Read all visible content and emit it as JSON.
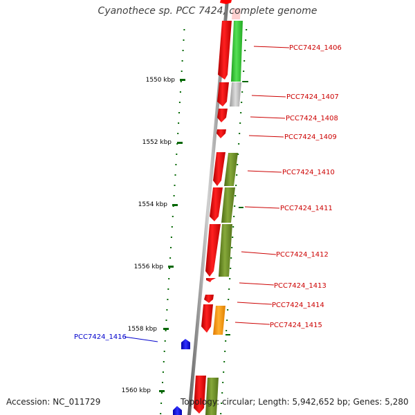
{
  "title": "Cyanothece sp. PCC 7424, complete genome",
  "accession": "Accession: NC_011729",
  "summary": "Topology: circular; Length: 5,942,652 bp; Genes: 5,280",
  "ruler_ticks": [
    "1550 kbp",
    "1552 kbp",
    "1554 kbp",
    "1556 kbp",
    "1558 kbp",
    "1560 kbp"
  ],
  "gene_labels": [
    {
      "text": "PCC7424_1406",
      "color": "#cc0000"
    },
    {
      "text": "PCC7424_1407",
      "color": "#cc0000"
    },
    {
      "text": "PCC7424_1408",
      "color": "#cc0000"
    },
    {
      "text": "PCC7424_1409",
      "color": "#cc0000"
    },
    {
      "text": "PCC7424_1410",
      "color": "#cc0000"
    },
    {
      "text": "PCC7424_1411",
      "color": "#cc0000"
    },
    {
      "text": "PCC7424_1412",
      "color": "#cc0000"
    },
    {
      "text": "PCC7424_1413",
      "color": "#cc0000"
    },
    {
      "text": "PCC7424_1414",
      "color": "#cc0000"
    },
    {
      "text": "PCC7424_1415",
      "color": "#cc0000"
    },
    {
      "text": "PCC7424_1416",
      "color": "#0000cc"
    }
  ],
  "colors": {
    "gene_forward": "#ff0000",
    "gene_reverse": "#0000ff",
    "cog_green": "#33cc33",
    "cog_grey": "#bbbbbb",
    "cog_olive": "#6b8e23",
    "cog_orange": "#ff9900",
    "ruler": "#006600",
    "backbone": "#888888"
  }
}
